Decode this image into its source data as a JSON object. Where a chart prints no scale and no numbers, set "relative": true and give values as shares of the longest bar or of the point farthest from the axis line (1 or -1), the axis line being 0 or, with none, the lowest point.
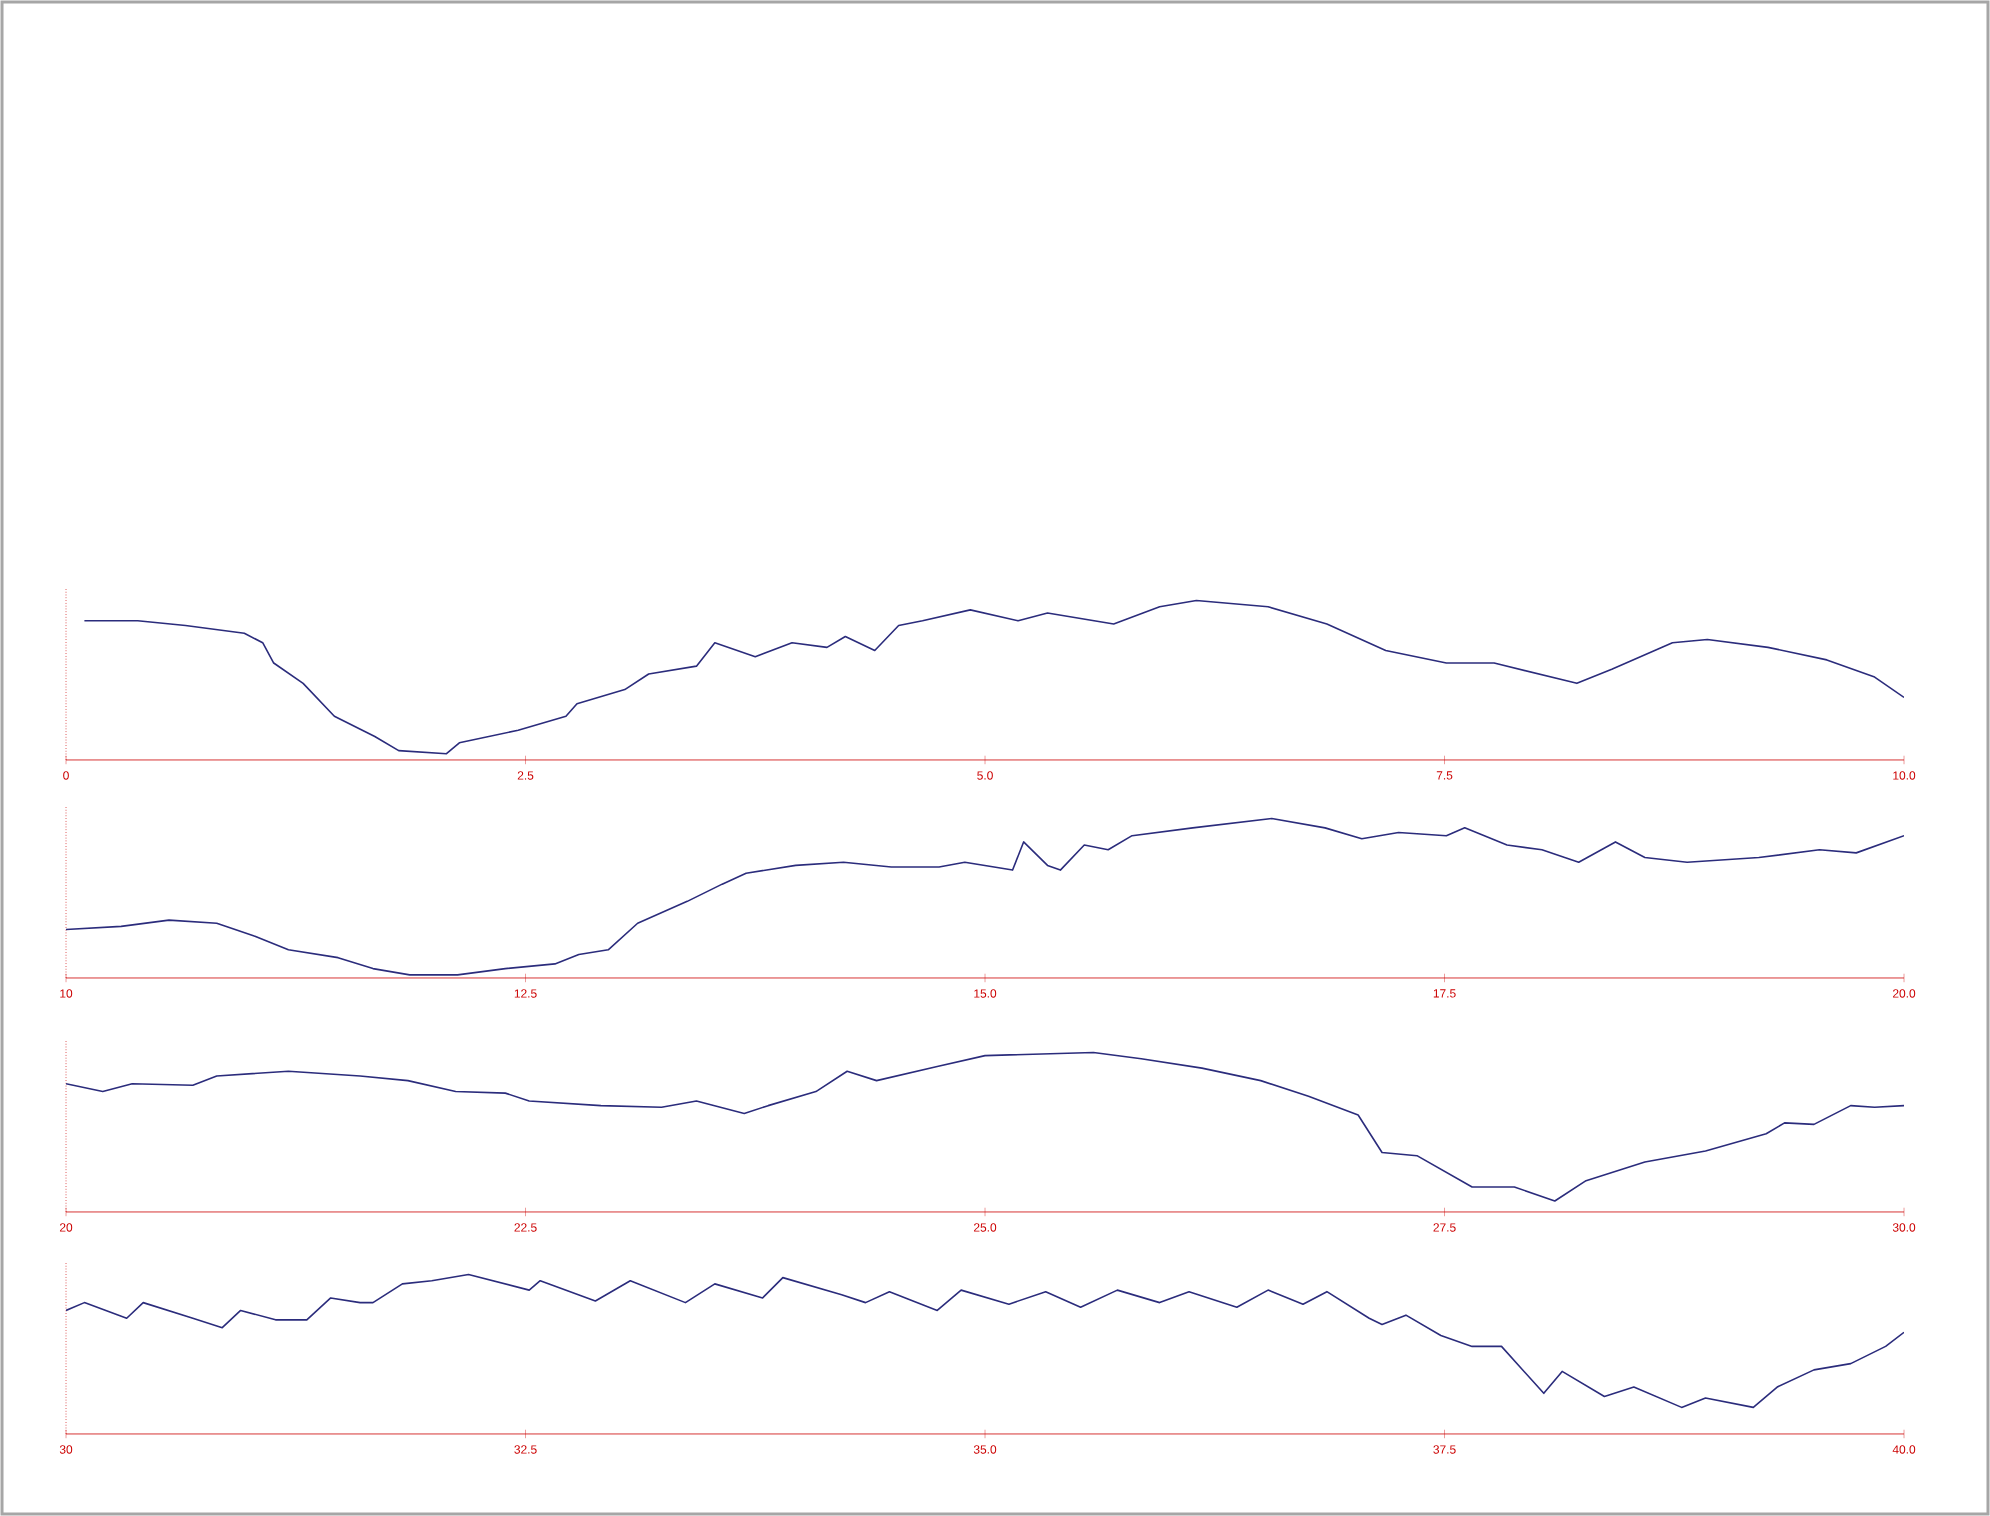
{
  "chart_data": [
    {
      "type": "line",
      "relative": true,
      "color": "#2b2c7c",
      "xlim": [
        0,
        10
      ],
      "xticks": [
        {
          "value": 0,
          "label": "0"
        },
        {
          "value": 2.5,
          "label": "2.5"
        },
        {
          "value": 5,
          "label": "5.0"
        },
        {
          "value": 7.5,
          "label": "7.5"
        },
        {
          "value": 10,
          "label": "10.0"
        }
      ],
      "x": [
        0.1,
        0.39,
        0.65,
        0.97,
        1.07,
        1.13,
        1.29,
        1.46,
        1.68,
        1.81,
        2.07,
        2.14,
        2.46,
        2.72,
        2.78,
        3.04,
        3.17,
        3.43,
        3.53,
        3.75,
        3.95,
        4.14,
        4.24,
        4.4,
        4.53,
        4.66,
        4.92,
        5.18,
        5.34,
        5.7,
        5.95,
        6.15,
        6.54,
        6.86,
        7.18,
        7.51,
        7.77,
        8.22,
        8.41,
        8.74,
        8.93,
        9.26,
        9.58,
        9.84,
        10.0
      ],
      "values": [
        0.87,
        0.87,
        0.84,
        0.79,
        0.73,
        0.6,
        0.47,
        0.26,
        0.13,
        0.04,
        0.02,
        0.09,
        0.17,
        0.26,
        0.34,
        0.43,
        0.53,
        0.58,
        0.73,
        0.64,
        0.73,
        0.7,
        0.77,
        0.68,
        0.84,
        0.87,
        0.94,
        0.87,
        0.92,
        0.85,
        0.96,
        1.0,
        0.96,
        0.85,
        0.68,
        0.6,
        0.6,
        0.47,
        0.56,
        0.73,
        0.75,
        0.7,
        0.62,
        0.51,
        0.38
      ]
    },
    {
      "type": "line",
      "relative": true,
      "color": "#2b2c7c",
      "xlim": [
        10,
        20
      ],
      "xticks": [
        {
          "value": 10,
          "label": "10"
        },
        {
          "value": 12.5,
          "label": "12.5"
        },
        {
          "value": 15,
          "label": "15.0"
        },
        {
          "value": 17.5,
          "label": "17.5"
        },
        {
          "value": 20,
          "label": "20.0"
        }
      ],
      "x": [
        10.0,
        10.3,
        10.56,
        10.82,
        11.02,
        11.21,
        11.48,
        11.67,
        11.87,
        12.13,
        12.39,
        12.66,
        12.79,
        12.95,
        13.11,
        13.38,
        13.57,
        13.7,
        13.97,
        14.23,
        14.49,
        14.75,
        14.89,
        15.15,
        15.21,
        15.34,
        15.41,
        15.54,
        15.67,
        15.8,
        16.13,
        16.56,
        16.85,
        17.05,
        17.25,
        17.51,
        17.61,
        17.84,
        18.03,
        18.23,
        18.43,
        18.59,
        18.82,
        19.21,
        19.54,
        19.74,
        20.0
      ],
      "values": [
        0.29,
        0.31,
        0.35,
        0.33,
        0.25,
        0.16,
        0.11,
        0.04,
        0.0,
        0.0,
        0.04,
        0.07,
        0.13,
        0.16,
        0.33,
        0.47,
        0.58,
        0.65,
        0.7,
        0.72,
        0.69,
        0.69,
        0.72,
        0.67,
        0.85,
        0.7,
        0.67,
        0.83,
        0.8,
        0.89,
        0.94,
        1.0,
        0.94,
        0.87,
        0.91,
        0.89,
        0.94,
        0.83,
        0.8,
        0.72,
        0.85,
        0.75,
        0.72,
        0.75,
        0.8,
        0.78,
        0.89
      ]
    },
    {
      "type": "line",
      "relative": true,
      "color": "#2b2c7c",
      "xlim": [
        20,
        30
      ],
      "xticks": [
        {
          "value": 20,
          "label": "20"
        },
        {
          "value": 22.5,
          "label": "22.5"
        },
        {
          "value": 25,
          "label": "25.0"
        },
        {
          "value": 27.5,
          "label": "27.5"
        },
        {
          "value": 30,
          "label": "30.0"
        }
      ],
      "x": [
        20.0,
        20.2,
        20.36,
        20.69,
        20.82,
        21.21,
        21.6,
        21.86,
        22.12,
        22.39,
        22.52,
        22.91,
        23.24,
        23.43,
        23.69,
        23.82,
        24.08,
        24.25,
        24.41,
        24.74,
        25.0,
        25.59,
        25.85,
        26.18,
        26.5,
        26.76,
        27.03,
        27.16,
        27.35,
        27.65,
        27.88,
        28.1,
        28.27,
        28.59,
        28.92,
        29.25,
        29.35,
        29.51,
        29.71,
        29.84,
        30.0
      ],
      "values": [
        0.8,
        0.75,
        0.8,
        0.79,
        0.85,
        0.88,
        0.85,
        0.82,
        0.75,
        0.74,
        0.69,
        0.66,
        0.65,
        0.69,
        0.61,
        0.66,
        0.75,
        0.88,
        0.82,
        0.91,
        0.98,
        1.0,
        0.96,
        0.9,
        0.82,
        0.72,
        0.6,
        0.36,
        0.34,
        0.14,
        0.14,
        0.05,
        0.18,
        0.3,
        0.37,
        0.48,
        0.55,
        0.54,
        0.66,
        0.65,
        0.66
      ]
    },
    {
      "type": "line",
      "relative": true,
      "color": "#2b2c7c",
      "xlim": [
        30,
        40
      ],
      "xticks": [
        {
          "value": 30,
          "label": "30"
        },
        {
          "value": 32.5,
          "label": "32.5"
        },
        {
          "value": 35,
          "label": "35.0"
        },
        {
          "value": 37.5,
          "label": "37.5"
        },
        {
          "value": 40,
          "label": "40.0"
        }
      ],
      "x": [
        30.0,
        30.1,
        30.33,
        30.42,
        30.69,
        30.85,
        30.95,
        31.14,
        31.31,
        31.44,
        31.6,
        31.67,
        31.83,
        31.99,
        32.19,
        32.52,
        32.58,
        32.88,
        33.07,
        33.37,
        33.53,
        33.79,
        33.9,
        34.22,
        34.35,
        34.48,
        34.74,
        34.87,
        35.13,
        35.33,
        35.52,
        35.72,
        35.95,
        36.11,
        36.37,
        36.54,
        36.73,
        36.86,
        37.09,
        37.16,
        37.29,
        37.48,
        37.65,
        37.81,
        38.04,
        38.14,
        38.37,
        38.53,
        38.79,
        38.92,
        39.18,
        39.31,
        39.51,
        39.71,
        39.9,
        40.0
      ],
      "values": [
        0.77,
        0.82,
        0.72,
        0.82,
        0.72,
        0.66,
        0.77,
        0.71,
        0.71,
        0.85,
        0.82,
        0.82,
        0.94,
        0.96,
        1.0,
        0.9,
        0.96,
        0.83,
        0.96,
        0.82,
        0.94,
        0.85,
        0.98,
        0.87,
        0.82,
        0.89,
        0.77,
        0.9,
        0.81,
        0.89,
        0.79,
        0.9,
        0.82,
        0.89,
        0.79,
        0.9,
        0.81,
        0.89,
        0.72,
        0.68,
        0.74,
        0.61,
        0.54,
        0.54,
        0.24,
        0.38,
        0.22,
        0.28,
        0.15,
        0.21,
        0.15,
        0.28,
        0.39,
        0.43,
        0.54,
        0.63
      ]
    }
  ]
}
